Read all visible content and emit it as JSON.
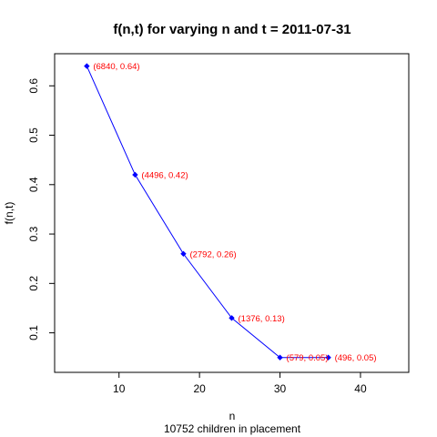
{
  "chart_data": {
    "type": "line",
    "title": "f(n,t) for varying n and t = 2011-07-31",
    "xlabel": "n",
    "subtitle": "10752 children in placement",
    "ylabel": "f(n,t)",
    "xlim": [
      2,
      46
    ],
    "ylim": [
      0.02,
      0.665
    ],
    "x_ticks": [
      10,
      20,
      30,
      40
    ],
    "y_ticks": [
      0.1,
      0.2,
      0.3,
      0.4,
      0.5,
      0.6
    ],
    "grid": false,
    "points": [
      {
        "x": 6,
        "y": 0.64,
        "label": "(6840, 0.64)"
      },
      {
        "x": 12,
        "y": 0.42,
        "label": "(4496, 0.42)"
      },
      {
        "x": 18,
        "y": 0.26,
        "label": "(2792, 0.26)"
      },
      {
        "x": 24,
        "y": 0.13,
        "label": "(1376, 0.13)"
      },
      {
        "x": 30,
        "y": 0.05,
        "label": "(579, 0.05)"
      },
      {
        "x": 36,
        "y": 0.05,
        "label": "(496, 0.05)"
      }
    ],
    "colors": {
      "line": "#0000ff",
      "marker": "#0000ff",
      "label": "#ff0000",
      "axis": "#000000"
    }
  }
}
